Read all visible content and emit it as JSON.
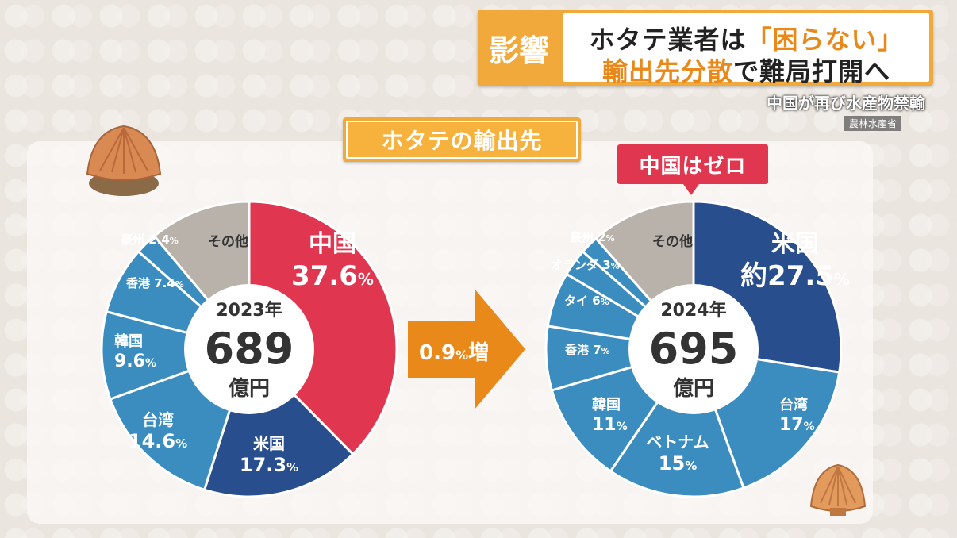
{
  "headline": {
    "tag": "影響",
    "line1_pre": "ホタテ業者は",
    "line1_hl": "「困らない」",
    "line2_hl": "輸出先分散",
    "line2_post": "で難局打開へ"
  },
  "subline": "中国が再び水産物禁輸",
  "source": "農林水産省",
  "panel_title": "ホタテの輸出先",
  "zero_badge": "中国はゼロ",
  "arrow": {
    "value": "0.9",
    "unit": "%",
    "text": "増"
  },
  "colors": {
    "china": "#e0364f",
    "usa": "#294e8d",
    "blue": "#3b8dbf",
    "other": "#b9b2aa"
  },
  "chart_data": [
    {
      "type": "pie",
      "center_year": "2023年",
      "center_value": "689",
      "center_unit": "億円",
      "slices": [
        {
          "label": "中国",
          "value": 37.6,
          "display": "37.6",
          "unit": "%",
          "color": "#e0364f"
        },
        {
          "label": "米国",
          "value": 17.3,
          "display": "17.3",
          "unit": "%",
          "color": "#294e8d"
        },
        {
          "label": "台湾",
          "value": 14.6,
          "display": "14.6",
          "unit": "%",
          "color": "#3b8dbf"
        },
        {
          "label": "韓国",
          "value": 9.6,
          "display": "9.6",
          "unit": "%",
          "color": "#3b8dbf"
        },
        {
          "label": "香港",
          "value": 7.4,
          "display": "7.4",
          "unit": "%",
          "color": "#3b8dbf"
        },
        {
          "label": "豪州",
          "value": 2.4,
          "display": "2.4",
          "unit": "%",
          "color": "#3b8dbf"
        },
        {
          "label": "その他",
          "value": 11.1,
          "display": "",
          "unit": "",
          "color": "#b9b2aa"
        }
      ]
    },
    {
      "type": "pie",
      "center_year": "2024年",
      "center_value": "695",
      "center_unit": "億円",
      "slices": [
        {
          "label": "米国",
          "value": 27.5,
          "display": "約27.5",
          "unit": "%",
          "color": "#294e8d"
        },
        {
          "label": "台湾",
          "value": 17,
          "display": "17",
          "unit": "%",
          "color": "#3b8dbf"
        },
        {
          "label": "ベトナム",
          "value": 15,
          "display": "15",
          "unit": "%",
          "color": "#3b8dbf"
        },
        {
          "label": "韓国",
          "value": 11,
          "display": "11",
          "unit": "%",
          "color": "#3b8dbf"
        },
        {
          "label": "香港",
          "value": 7,
          "display": "7",
          "unit": "%",
          "color": "#3b8dbf"
        },
        {
          "label": "タイ",
          "value": 6,
          "display": "6",
          "unit": "%",
          "color": "#3b8dbf"
        },
        {
          "label": "オランダ",
          "value": 3,
          "display": "3",
          "unit": "%",
          "color": "#3b8dbf"
        },
        {
          "label": "豪州",
          "value": 2,
          "display": "2",
          "unit": "%",
          "color": "#3b8dbf"
        },
        {
          "label": "その他",
          "value": 11.5,
          "display": "",
          "unit": "",
          "color": "#b9b2aa"
        }
      ]
    }
  ]
}
